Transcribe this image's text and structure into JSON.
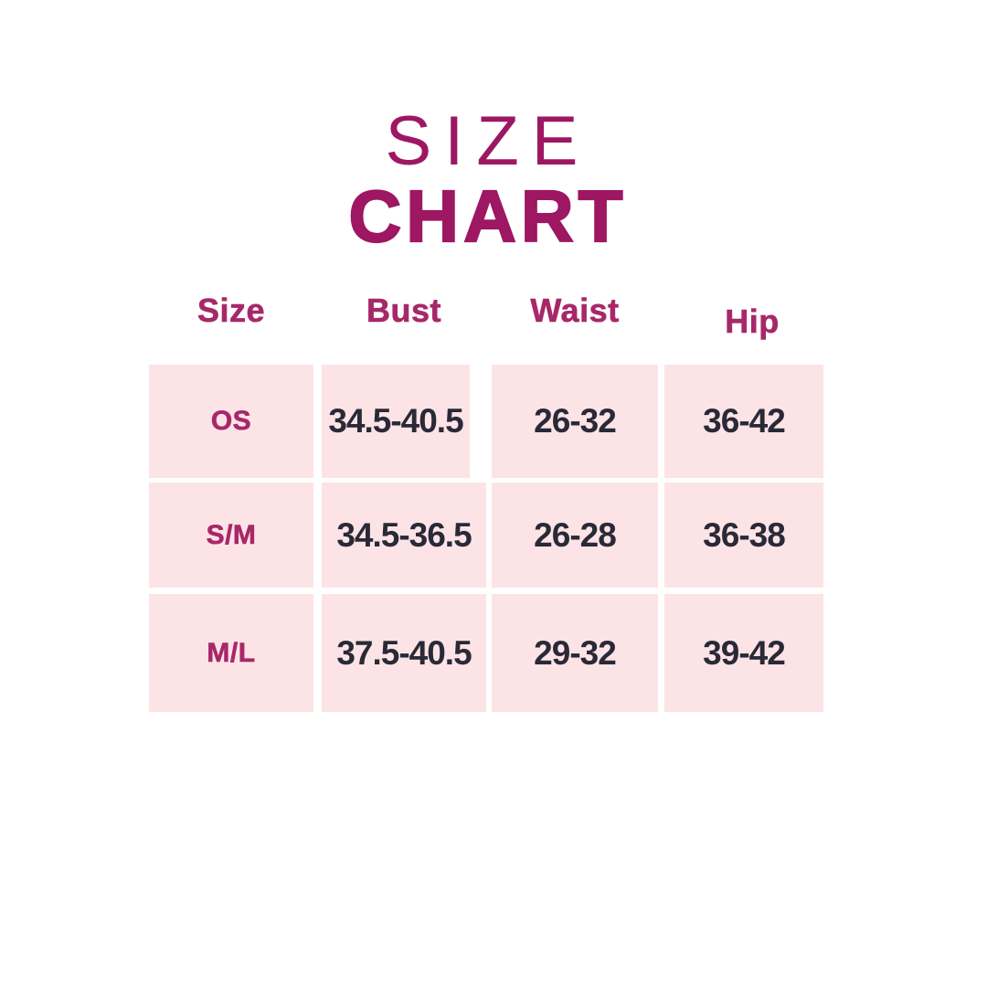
{
  "title": {
    "line1": "SIZE",
    "line2": "CHART"
  },
  "table": {
    "headers": [
      "Size",
      "Bust",
      "Waist",
      "Hip"
    ],
    "rows": [
      {
        "size": "OS",
        "bust": "34.5-40.5",
        "waist": "26-32",
        "hip": "36-42"
      },
      {
        "size": "S/M",
        "bust": "34.5-36.5",
        "waist": "26-28",
        "hip": "36-38"
      },
      {
        "size": "M/L",
        "bust": "37.5-40.5",
        "waist": "29-32",
        "hip": "39-42"
      }
    ]
  },
  "colors": {
    "accent": "#9D1763",
    "accent_soft": "#A72869",
    "cell_bg": "#FCE4E6",
    "value_text": "#2A2937",
    "background": "#FFFFFF"
  }
}
